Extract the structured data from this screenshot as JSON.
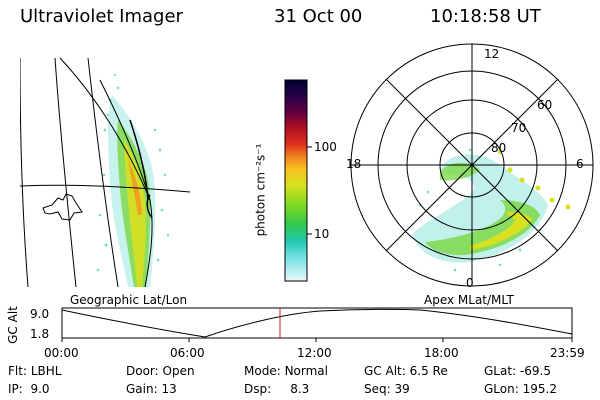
{
  "header": {
    "instrument": "Ultraviolet Imager",
    "date": "31 Oct 00",
    "time": "10:18:58 UT"
  },
  "colorbar": {
    "label": "photon cm⁻²s⁻¹",
    "ticks": [
      "100",
      "10"
    ],
    "colors": [
      "#000033",
      "#220044",
      "#3a0050",
      "#600040",
      "#900020",
      "#c00020",
      "#e03020",
      "#f06020",
      "#f8a020",
      "#f8d020",
      "#d0e020",
      "#a0e020",
      "#60d820",
      "#30c840",
      "#20c8a0",
      "#30d8d0",
      "#70e8e8",
      "#b0f0f0",
      "#e0f8f8"
    ]
  },
  "polar": {
    "rings": [
      "60",
      "70",
      "80"
    ],
    "mlt": {
      "top": "12",
      "left": "18",
      "right": "6",
      "bottom": "0"
    }
  },
  "map_labels": {
    "geographic": "Geographic Lat/Lon",
    "apex": "Apex MLat/MLT"
  },
  "altitude_plot": {
    "ylabel": "GC Alt",
    "yticks": [
      "9.0",
      "1.8"
    ],
    "xticks": [
      "00:00",
      "06:00",
      "12:00",
      "18:00",
      "23:59"
    ],
    "marker_color": "#d02020"
  },
  "info": {
    "flt": {
      "label": "Flt:",
      "value": "LBHL"
    },
    "ip": {
      "label": "IP:",
      "value": "9.0"
    },
    "door": {
      "label": "Door:",
      "value": "Open"
    },
    "gain": {
      "label": "Gain:",
      "value": "13"
    },
    "mode": {
      "label": "Mode:",
      "value": "Normal"
    },
    "dsp": {
      "label": "Dsp:",
      "value": "8.3"
    },
    "gcalt": {
      "label": "GC Alt:",
      "value": "6.5 Re"
    },
    "seq": {
      "label": "Seq:",
      "value": "39"
    },
    "glat": {
      "label": "GLat:",
      "value": "-69.5"
    },
    "glon": {
      "label": "GLon:",
      "value": "195.2"
    }
  }
}
